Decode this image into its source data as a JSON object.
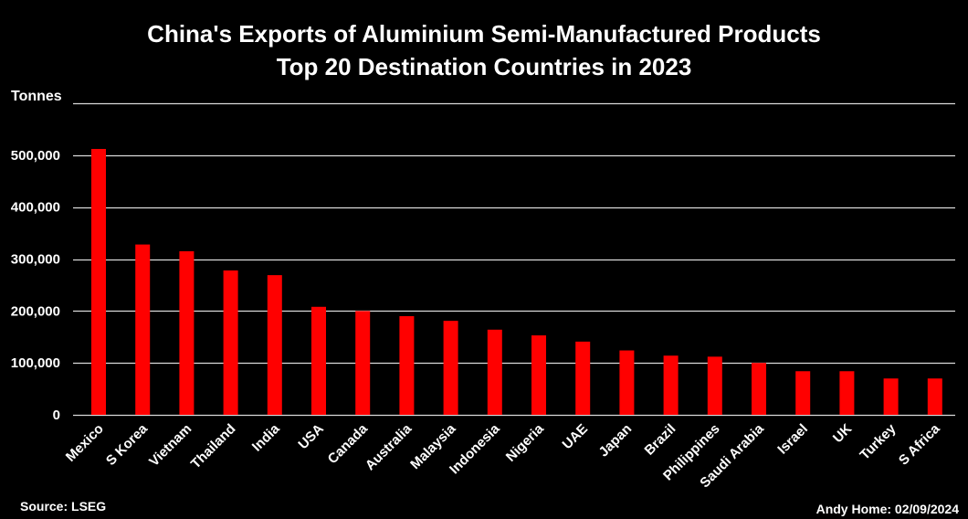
{
  "chart_data": {
    "type": "bar",
    "title": "China's Exports of Aluminium Semi-Manufactured Products",
    "subtitle": "Top 20 Destination Countries in 2023",
    "ylabel": "Tonnes",
    "xlabel": "",
    "ylim": [
      0,
      600000
    ],
    "yticks": [
      0,
      100000,
      200000,
      300000,
      400000,
      500000
    ],
    "ytick_labels": [
      "0",
      "100,000",
      "200,000",
      "300,000",
      "400,000",
      "500,000"
    ],
    "grid": true,
    "legend": "none",
    "bar_color": "#ff0000",
    "background": "#000000",
    "categories": [
      "Mexico",
      "S Korea",
      "Vietnam",
      "Thailand",
      "India",
      "USA",
      "Canada",
      "Australia",
      "Malaysia",
      "Indonesia",
      "Nigeria",
      "UAE",
      "Japan",
      "Brazil",
      "Philippines",
      "Saudi Arabia",
      "Israel",
      "UK",
      "Turkey",
      "S Africa"
    ],
    "values": [
      512000,
      328000,
      315000,
      278000,
      269000,
      208000,
      200000,
      190000,
      181000,
      164000,
      153000,
      141000,
      124000,
      114000,
      112000,
      100000,
      84000,
      84000,
      70000,
      70000
    ]
  },
  "source": "Source: LSEG",
  "credit": "Andy Home: 02/09/2024"
}
